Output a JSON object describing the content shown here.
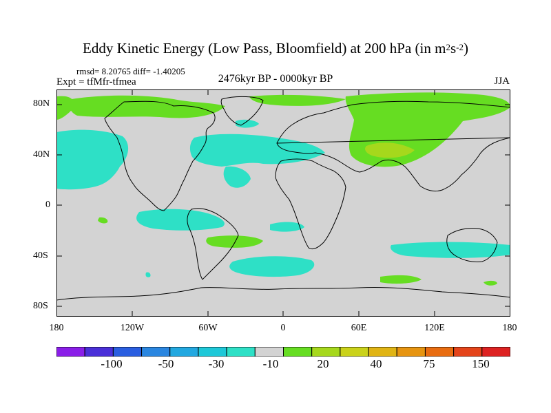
{
  "title": {
    "main": "Eddy Kinetic Energy (Low Pass, Bloomfield) at 200 hPa (in m",
    "exp1": "2",
    "mid": "s",
    "exp2": "-2",
    "end": ")"
  },
  "stats_line": "rmsd= 8.20765 diff= -1.40205",
  "expt_line": "Expt = tfMfr-tfmea",
  "period": "2476kyr BP - 0000kyr BP",
  "season": "JJA",
  "lat_labels": [
    "80N",
    "40N",
    "0",
    "40S",
    "80S"
  ],
  "lon_labels": [
    "180",
    "120W",
    "60W",
    "0",
    "60E",
    "120E",
    "180"
  ],
  "colors": {
    "land_sea_background": "#d3d3d3",
    "coastline": "#000000",
    "negative_small": "#2ee0c6",
    "positive_small": "#66dd22",
    "positive_medium": "#a6d81c"
  },
  "colorbar": {
    "colors": [
      "#8a1ee8",
      "#4a2fd8",
      "#2a5ee0",
      "#2a86e0",
      "#22a8e0",
      "#1ec8d8",
      "#2ee0c6",
      "#d3d3d3",
      "#66dd22",
      "#a6d81c",
      "#cad21a",
      "#e0b414",
      "#e69410",
      "#e86c10",
      "#e4441a",
      "#dd2222"
    ],
    "labels": [
      "-100",
      "-50",
      "-30",
      "-10",
      "20",
      "40",
      "75",
      "150"
    ]
  }
}
